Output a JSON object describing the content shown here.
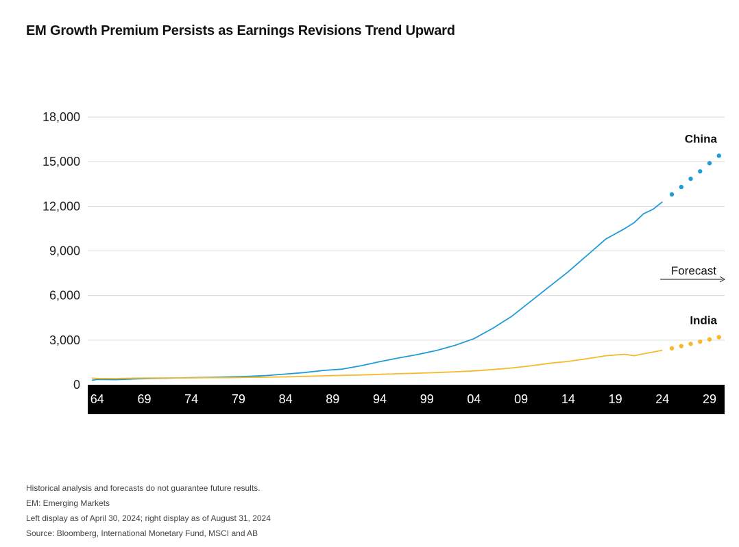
{
  "title": "EM Growth Premium Persists as Earnings Revisions Trend Upward",
  "notes": [
    "Historical analysis and forecasts do not guarantee future results.",
    "EM: Emerging Markets",
    "Left display as of April 30, 2024; right display as of August 31, 2024",
    "Source: Bloomberg, International Monetary Fund, MSCI and AB"
  ],
  "colors": {
    "china": "#1f9bd7",
    "india": "#f7b928",
    "axis_band": "#000000",
    "grid": "#d9d9d9"
  },
  "chart_data": {
    "type": "line",
    "xlabel": "",
    "ylabel": "",
    "x_ticks": [
      {
        "year": 1964,
        "label": "64"
      },
      {
        "year": 1969,
        "label": "69"
      },
      {
        "year": 1974,
        "label": "74"
      },
      {
        "year": 1979,
        "label": "79"
      },
      {
        "year": 1984,
        "label": "84"
      },
      {
        "year": 1989,
        "label": "89"
      },
      {
        "year": 1994,
        "label": "94"
      },
      {
        "year": 1999,
        "label": "99"
      },
      {
        "year": 2004,
        "label": "04"
      },
      {
        "year": 2009,
        "label": "09"
      },
      {
        "year": 2014,
        "label": "14"
      },
      {
        "year": 2019,
        "label": "19"
      },
      {
        "year": 2024,
        "label": "24"
      },
      {
        "year": 2029,
        "label": "29"
      }
    ],
    "y_ticks": [
      {
        "value": 0,
        "label": "0"
      },
      {
        "value": 3000,
        "label": "3,000"
      },
      {
        "value": 6000,
        "label": "6,000"
      },
      {
        "value": 9000,
        "label": "9,000"
      },
      {
        "value": 12000,
        "label": "12,000"
      },
      {
        "value": 15000,
        "label": "15,000"
      },
      {
        "value": 18000,
        "label": "18,000"
      }
    ],
    "xlim": [
      1963,
      2030.6
    ],
    "ylim": [
      0,
      18000
    ],
    "grid": true,
    "forecast_label": "Forecast",
    "series": [
      {
        "name": "China",
        "color": "#1f9bd7",
        "x": [
          1962,
          1964,
          1966,
          1968,
          1970,
          1972,
          1974,
          1976,
          1978,
          1980,
          1982,
          1984,
          1986,
          1988,
          1990,
          1992,
          1994,
          1996,
          1998,
          2000,
          2002,
          2004,
          2006,
          2008,
          2010,
          2012,
          2014,
          2016,
          2018,
          2020,
          2021,
          2022,
          2023,
          2024
        ],
        "values": [
          300,
          360,
          340,
          390,
          420,
          450,
          480,
          500,
          530,
          560,
          620,
          720,
          820,
          960,
          1050,
          1280,
          1550,
          1800,
          2030,
          2300,
          2650,
          3100,
          3800,
          4600,
          5600,
          6600,
          7600,
          8700,
          9800,
          10500,
          10900,
          11500,
          11800,
          12300
        ],
        "forecast_x": [
          2025,
          2026,
          2027,
          2028,
          2029,
          2030
        ],
        "forecast_values": [
          12800,
          13300,
          13850,
          14350,
          14900,
          15400
        ]
      },
      {
        "name": "India",
        "color": "#f7b928",
        "x": [
          1962,
          1964,
          1966,
          1968,
          1970,
          1972,
          1974,
          1976,
          1978,
          1980,
          1982,
          1984,
          1986,
          1988,
          1990,
          1992,
          1994,
          1996,
          1998,
          2000,
          2002,
          2004,
          2006,
          2008,
          2010,
          2012,
          2014,
          2016,
          2018,
          2020,
          2021,
          2022,
          2023,
          2024
        ],
        "values": [
          450,
          420,
          420,
          440,
          450,
          460,
          460,
          480,
          480,
          500,
          510,
          530,
          560,
          600,
          630,
          660,
          700,
          740,
          780,
          820,
          870,
          930,
          1020,
          1130,
          1270,
          1440,
          1570,
          1750,
          1950,
          2050,
          1950,
          2080,
          2200,
          2320
        ],
        "forecast_x": [
          2025,
          2026,
          2027,
          2028,
          2029,
          2030
        ],
        "forecast_values": [
          2450,
          2600,
          2750,
          2900,
          3050,
          3200
        ]
      }
    ]
  }
}
